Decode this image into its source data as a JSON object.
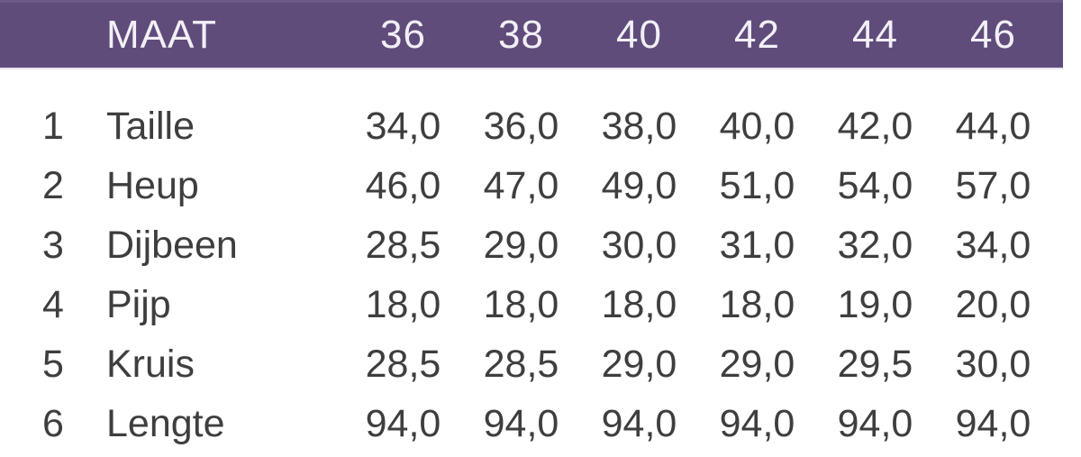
{
  "table": {
    "header": {
      "label": "MAAT",
      "sizes": [
        "36",
        "38",
        "40",
        "42",
        "44",
        "46"
      ]
    },
    "rows": [
      {
        "num": "1",
        "label": "Taille",
        "values": [
          "34,0",
          "36,0",
          "38,0",
          "40,0",
          "42,0",
          "44,0"
        ]
      },
      {
        "num": "2",
        "label": "Heup",
        "values": [
          "46,0",
          "47,0",
          "49,0",
          "51,0",
          "54,0",
          "57,0"
        ]
      },
      {
        "num": "3",
        "label": "Dijbeen",
        "values": [
          "28,5",
          "29,0",
          "30,0",
          "31,0",
          "32,0",
          "34,0"
        ]
      },
      {
        "num": "4",
        "label": "Pijp",
        "values": [
          "18,0",
          "18,0",
          "18,0",
          "18,0",
          "19,0",
          "20,0"
        ]
      },
      {
        "num": "5",
        "label": "Kruis",
        "values": [
          "28,5",
          "28,5",
          "29,0",
          "29,0",
          "29,5",
          "30,0"
        ]
      },
      {
        "num": "6",
        "label": "Lengte",
        "values": [
          "94,0",
          "94,0",
          "94,0",
          "94,0",
          "94,0",
          "94,0"
        ]
      }
    ]
  },
  "colors": {
    "header_bg": "#5f4c7b",
    "header_bg_light": "#6d5a89",
    "header_underline": "#e9e5f1",
    "header_text": "#f2eff7",
    "body_text": "#3e3e3e"
  },
  "chart_data": {
    "type": "table",
    "title": "MAAT",
    "columns": [
      "",
      "MAAT",
      "36",
      "38",
      "40",
      "42",
      "44",
      "46"
    ],
    "rows": [
      [
        "1",
        "Taille",
        34.0,
        36.0,
        38.0,
        40.0,
        42.0,
        44.0
      ],
      [
        "2",
        "Heup",
        46.0,
        47.0,
        49.0,
        51.0,
        54.0,
        57.0
      ],
      [
        "3",
        "Dijbeen",
        28.5,
        29.0,
        30.0,
        31.0,
        32.0,
        34.0
      ],
      [
        "4",
        "Pijp",
        18.0,
        18.0,
        18.0,
        18.0,
        19.0,
        20.0
      ],
      [
        "5",
        "Kruis",
        28.5,
        28.5,
        29.0,
        29.0,
        29.5,
        30.0
      ],
      [
        "6",
        "Lengte",
        94.0,
        94.0,
        94.0,
        94.0,
        94.0,
        94.0
      ]
    ],
    "notes": "Decimal comma formatting; header row has purple background"
  }
}
